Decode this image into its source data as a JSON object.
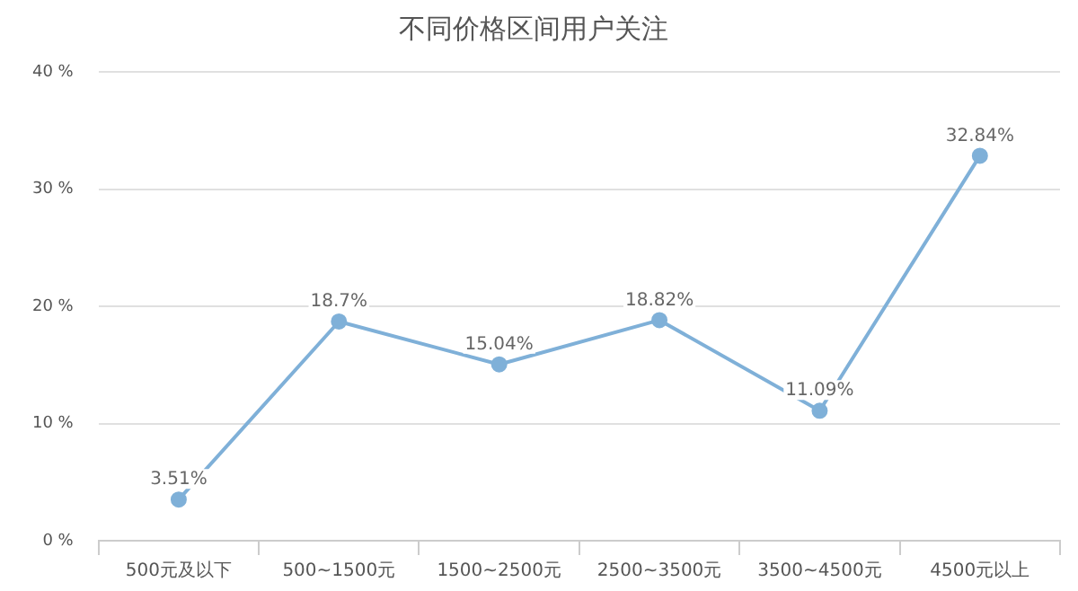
{
  "chart_data": {
    "type": "line",
    "title": "不同价格区间用户关注",
    "categories": [
      "500元及以下",
      "500~1500元",
      "1500~2500元",
      "2500~3500元",
      "3500~4500元",
      "4500元以上"
    ],
    "series": [
      {
        "color": "#7fb0d8",
        "values": [
          3.51,
          18.7,
          15.04,
          18.82,
          11.09,
          32.84
        ],
        "value_labels": [
          "3.51%",
          "18.7%",
          "15.04%",
          "18.82%",
          "11.09%",
          "32.84%"
        ]
      }
    ],
    "ylim": [
      0,
      40
    ],
    "yticks": [
      {
        "value": 0,
        "label": "0 %"
      },
      {
        "value": 10,
        "label": "10 %"
      },
      {
        "value": 20,
        "label": "20 %"
      },
      {
        "value": 30,
        "label": "30 %"
      },
      {
        "value": 40,
        "label": "40 %"
      }
    ],
    "grid": "y",
    "legend": false,
    "marker": "circle",
    "line_style": "solid"
  }
}
